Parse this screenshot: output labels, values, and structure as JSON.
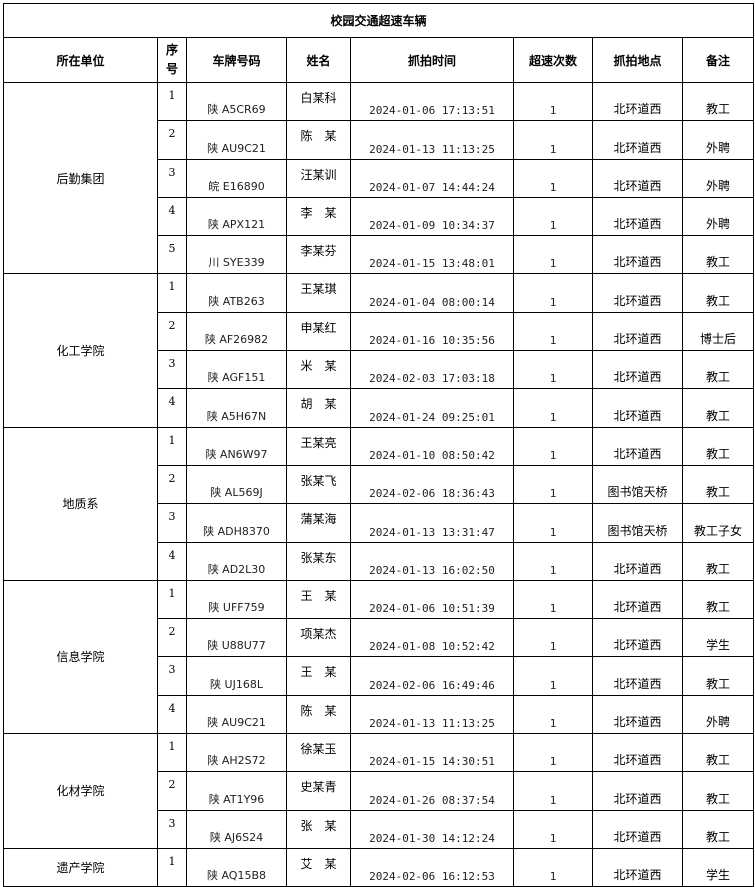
{
  "title": "校园交通超速车辆",
  "headers": {
    "unit": "所在单位",
    "seq": "序号",
    "plate": "车牌号码",
    "name": "姓名",
    "time": "抓拍时间",
    "count": "超速次数",
    "place": "抓拍地点",
    "note": "备注"
  },
  "groups": [
    {
      "unit": "后勤集团",
      "rows": [
        [
          "1",
          "陕 A5CR69",
          "白某科",
          "2024-01-06 17:13:51",
          "1",
          "北环道西",
          "教工"
        ],
        [
          "2",
          "陕 AU9C21",
          "陈　某",
          "2024-01-13 11:13:25",
          "1",
          "北环道西",
          "外聘"
        ],
        [
          "3",
          "皖 E16890",
          "汪某训",
          "2024-01-07 14:44:24",
          "1",
          "北环道西",
          "外聘"
        ],
        [
          "4",
          "陕 APX121",
          "李　某",
          "2024-01-09 10:34:37",
          "1",
          "北环道西",
          "外聘"
        ],
        [
          "5",
          "川 SYE339",
          "李某芬",
          "2024-01-15 13:48:01",
          "1",
          "北环道西",
          "教工"
        ]
      ]
    },
    {
      "unit": "化工学院",
      "rows": [
        [
          "1",
          "陕 ATB263",
          "王某琪",
          "2024-01-04 08:00:14",
          "1",
          "北环道西",
          "教工"
        ],
        [
          "2",
          "陕 AF26982",
          "申某红",
          "2024-01-16 10:35:56",
          "1",
          "北环道西",
          "博士后"
        ],
        [
          "3",
          "陕 AGF151",
          "米　某",
          "2024-02-03 17:03:18",
          "1",
          "北环道西",
          "教工"
        ],
        [
          "4",
          "陕 A5H67N",
          "胡　某",
          "2024-01-24 09:25:01",
          "1",
          "北环道西",
          "教工"
        ]
      ]
    },
    {
      "unit": "地质系",
      "rows": [
        [
          "1",
          "陕 AN6W97",
          "王某亮",
          "2024-01-10 08:50:42",
          "1",
          "北环道西",
          "教工"
        ],
        [
          "2",
          "陕 AL569J",
          "张某飞",
          "2024-02-06 18:36:43",
          "1",
          "图书馆天桥",
          "教工"
        ],
        [
          "3",
          "陕 ADH8370",
          "蒲某海",
          "2024-01-13 13:31:47",
          "1",
          "图书馆天桥",
          "教工子女"
        ],
        [
          "4",
          "陕 AD2L30",
          "张某东",
          "2024-01-13 16:02:50",
          "1",
          "北环道西",
          "教工"
        ]
      ]
    },
    {
      "unit": "信息学院",
      "rows": [
        [
          "1",
          "陕 UFF759",
          "王　某",
          "2024-01-06 10:51:39",
          "1",
          "北环道西",
          "教工"
        ],
        [
          "2",
          "陕 U88U77",
          "项某杰",
          "2024-01-08 10:52:42",
          "1",
          "北环道西",
          "学生"
        ],
        [
          "3",
          "陕 UJ168L",
          "王　某",
          "2024-02-06 16:49:46",
          "1",
          "北环道西",
          "教工"
        ],
        [
          "4",
          "陕 AU9C21",
          "陈　某",
          "2024-01-13 11:13:25",
          "1",
          "北环道西",
          "外聘"
        ]
      ]
    },
    {
      "unit": "化材学院",
      "rows": [
        [
          "1",
          "陕 AH2S72",
          "徐某玉",
          "2024-01-15 14:30:51",
          "1",
          "北环道西",
          "教工"
        ],
        [
          "2",
          "陕 AT1Y96",
          "史某青",
          "2024-01-26 08:37:54",
          "1",
          "北环道西",
          "教工"
        ],
        [
          "3",
          "陕 AJ6S24",
          "张　某",
          "2024-01-30 14:12:24",
          "1",
          "北环道西",
          "教工"
        ]
      ]
    },
    {
      "unit": "遗产学院",
      "rows": [
        [
          "1",
          "陕 AQ15B8",
          "艾　某",
          "2024-02-06 16:12:53",
          "1",
          "北环道西",
          "学生"
        ]
      ]
    }
  ]
}
